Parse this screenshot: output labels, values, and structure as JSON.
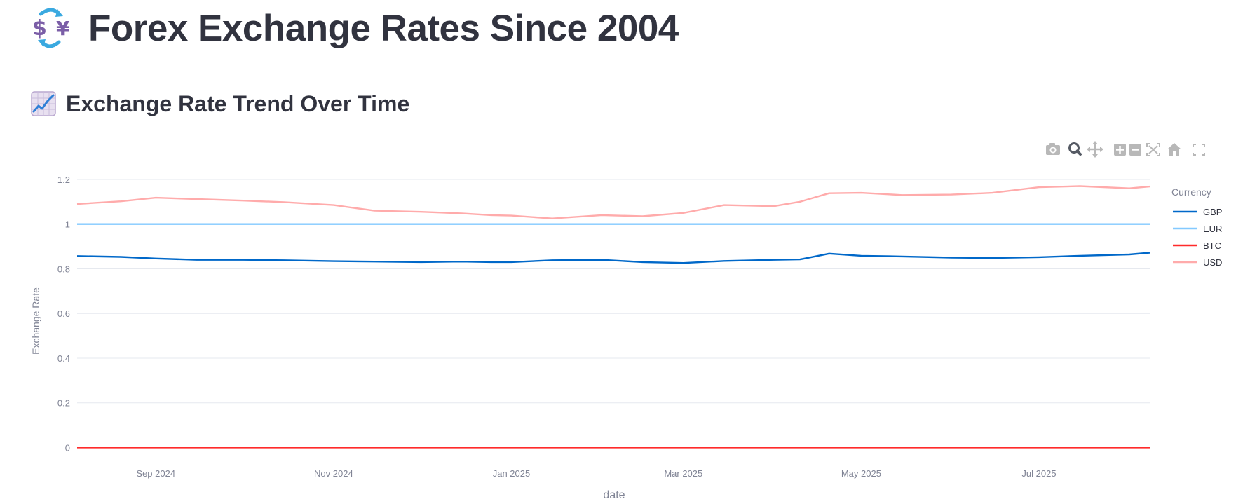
{
  "page": {
    "title": "Forex Exchange Rates Since 2004",
    "title_icon": "currency-exchange-icon",
    "section_title": "Exchange Rate Trend Over Time",
    "section_icon": "chart-increasing-icon"
  },
  "modebar": {
    "buttons": [
      "camera-icon",
      "zoom-icon",
      "pan-icon",
      "zoom-in-icon",
      "zoom-out-icon",
      "autoscale-icon",
      "home-icon",
      "fullscreen-icon"
    ],
    "active": "zoom-icon"
  },
  "chart_data": {
    "type": "line",
    "xlabel": "date",
    "ylabel": "Exchange Rate",
    "ylim": [
      -0.03,
      1.25
    ],
    "yticks": [
      0,
      0.2,
      0.4,
      0.6,
      0.8,
      1,
      1.2
    ],
    "ytick_labels": [
      "0",
      "0.2",
      "0.4",
      "0.6",
      "0.8",
      "1",
      "1.2"
    ],
    "xlim": [
      "2024-08-05",
      "2025-08-08"
    ],
    "xticks": [
      "2024-09-01",
      "2024-11-01",
      "2025-01-01",
      "2025-03-01",
      "2025-05-01",
      "2025-07-01"
    ],
    "xtick_labels": [
      "Sep 2024",
      "Nov 2024",
      "Jan 2025",
      "Mar 2025",
      "May 2025",
      "Jul 2025"
    ],
    "grid": true,
    "legend": {
      "title": "Currency",
      "position": "right"
    },
    "x": [
      "2024-08-05",
      "2024-08-20",
      "2024-09-01",
      "2024-09-15",
      "2024-10-01",
      "2024-10-15",
      "2024-11-01",
      "2024-11-15",
      "2024-12-01",
      "2024-12-15",
      "2024-12-25",
      "2025-01-01",
      "2025-01-15",
      "2025-02-01",
      "2025-02-15",
      "2025-03-01",
      "2025-03-15",
      "2025-04-01",
      "2025-04-10",
      "2025-04-20",
      "2025-05-01",
      "2025-05-15",
      "2025-06-01",
      "2025-06-15",
      "2025-07-01",
      "2025-07-15",
      "2025-08-01",
      "2025-08-08"
    ],
    "series": [
      {
        "name": "GBP",
        "color": "#0068c9",
        "values": [
          0.857,
          0.853,
          0.846,
          0.84,
          0.84,
          0.838,
          0.834,
          0.832,
          0.83,
          0.832,
          0.83,
          0.83,
          0.838,
          0.84,
          0.83,
          0.826,
          0.835,
          0.84,
          0.842,
          0.868,
          0.858,
          0.855,
          0.85,
          0.848,
          0.852,
          0.858,
          0.864,
          0.872
        ]
      },
      {
        "name": "EUR",
        "color": "#83c9ff",
        "values": [
          1,
          1,
          1,
          1,
          1,
          1,
          1,
          1,
          1,
          1,
          1,
          1,
          1,
          1,
          1,
          1,
          1,
          1,
          1,
          1,
          1,
          1,
          1,
          1,
          1,
          1,
          1,
          1
        ]
      },
      {
        "name": "BTC",
        "color": "#ff2b2b",
        "values": [
          0,
          0,
          0,
          0,
          0,
          0,
          0,
          0,
          0,
          0,
          0,
          0,
          0,
          0,
          0,
          0,
          0,
          0,
          0,
          0,
          0,
          0,
          0,
          0,
          0,
          0,
          0,
          0
        ]
      },
      {
        "name": "USD",
        "color": "#ffabab",
        "values": [
          1.09,
          1.102,
          1.118,
          1.112,
          1.105,
          1.098,
          1.085,
          1.06,
          1.055,
          1.048,
          1.04,
          1.038,
          1.025,
          1.04,
          1.035,
          1.05,
          1.085,
          1.08,
          1.1,
          1.138,
          1.14,
          1.13,
          1.132,
          1.14,
          1.165,
          1.17,
          1.16,
          1.168
        ]
      }
    ]
  }
}
